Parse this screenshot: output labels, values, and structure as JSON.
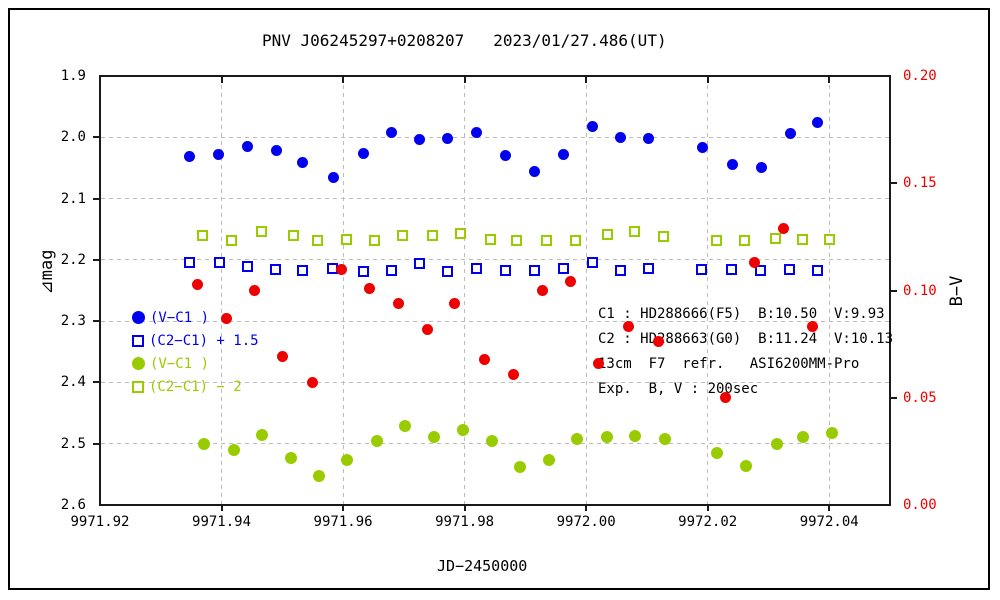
{
  "title": "PNV J06245297+0208207   2023/01/27.486(UT)",
  "colors": {
    "blue": "#0000ee",
    "green": "#99cc00",
    "red": "#ee0000",
    "grid": "#bdbdbd",
    "frame": "#1a1a1a"
  },
  "chart_data": {
    "type": "scatter",
    "title": "PNV J06245297+0208207   2023/01/27.486(UT)",
    "xlabel": "JD−2450000",
    "ylabel_left": "⊿mag",
    "ylabel_right": "B−V",
    "grid": true,
    "xlim": [
      9971.92,
      9972.05
    ],
    "ylim_left": [
      1.9,
      2.6
    ],
    "ylim_right": [
      0.2,
      0.0
    ],
    "x_ticks": [
      9971.92,
      9971.94,
      9971.96,
      9971.98,
      9972.0,
      9972.02,
      9972.04
    ],
    "y_ticks_left": [
      1.9,
      2.0,
      2.1,
      2.2,
      2.3,
      2.4,
      2.5,
      2.6
    ],
    "y_ticks_right": [
      0.2,
      0.15,
      0.1,
      0.05,
      0.0
    ],
    "legend": [
      {
        "label": "(V−C1 )",
        "marker": "circle",
        "color": "#0000ee"
      },
      {
        "label": "(C2−C1) + 1.5",
        "marker": "square",
        "color": "#0000ee"
      },
      {
        "label": "(V−C1 )",
        "marker": "circle",
        "color": "#99cc00"
      },
      {
        "label": "(C2−C1) − 2",
        "marker": "square",
        "color": "#99cc00"
      }
    ],
    "annotation_lines": [
      "C1 : HD288666(F5)  B:10.50  V:9.93",
      "C2 : HD288663(G0)  B:11.24  V:10.13",
      "13cm  F7  refr.   ASI6200MM-Pro",
      "Exp.  B, V : 200sec"
    ],
    "series": [
      {
        "id": "v-c1-blue",
        "name": "(V−C1 )",
        "marker": "circle",
        "filled": true,
        "color": "#0000ee",
        "axis": "left",
        "size": 11,
        "points": [
          [
            9971.9347,
            2.031
          ],
          [
            9971.9395,
            2.028
          ],
          [
            9971.9443,
            2.015
          ],
          [
            9971.949,
            2.022
          ],
          [
            9971.9534,
            2.041
          ],
          [
            9971.9584,
            2.066
          ],
          [
            9971.9633,
            2.026
          ],
          [
            9971.9679,
            1.992
          ],
          [
            9971.9725,
            2.004
          ],
          [
            9971.9772,
            2.002
          ],
          [
            9971.982,
            1.993
          ],
          [
            9971.9868,
            2.03
          ],
          [
            9971.9915,
            2.056
          ],
          [
            9971.9962,
            2.028
          ],
          [
            9972.0011,
            1.982
          ],
          [
            9972.0057,
            2.001
          ],
          [
            9972.0103,
            2.002
          ],
          [
            9972.0191,
            2.016
          ],
          [
            9972.024,
            2.044
          ],
          [
            9972.0289,
            2.049
          ],
          [
            9972.0337,
            1.994
          ],
          [
            9972.0381,
            1.976
          ]
        ]
      },
      {
        "id": "c2-c1-blue",
        "name": "(C2−C1) + 1.5",
        "marker": "square",
        "filled": false,
        "color": "#0000ee",
        "axis": "left",
        "size": 11,
        "points": [
          [
            9971.9348,
            2.205
          ],
          [
            9971.9396,
            2.204
          ],
          [
            9971.9443,
            2.211
          ],
          [
            9971.9489,
            2.216
          ],
          [
            9971.9534,
            2.218
          ],
          [
            9971.9582,
            2.214
          ],
          [
            9971.9633,
            2.219
          ],
          [
            9971.9679,
            2.217
          ],
          [
            9971.9725,
            2.206
          ],
          [
            9971.9772,
            2.219
          ],
          [
            9971.982,
            2.214
          ],
          [
            9971.9868,
            2.217
          ],
          [
            9971.9915,
            2.217
          ],
          [
            9971.9962,
            2.214
          ],
          [
            9972.0011,
            2.205
          ],
          [
            9972.0057,
            2.217
          ],
          [
            9972.0103,
            2.214
          ],
          [
            9972.019,
            2.216
          ],
          [
            9972.0239,
            2.216
          ],
          [
            9972.0287,
            2.218
          ],
          [
            9972.0335,
            2.216
          ],
          [
            9972.038,
            2.217
          ]
        ]
      },
      {
        "id": "v-c1-green",
        "name": "(V−C1 )",
        "marker": "circle",
        "filled": true,
        "color": "#99cc00",
        "axis": "left",
        "size": 12,
        "points": [
          [
            9971.9371,
            2.5
          ],
          [
            9971.942,
            2.511
          ],
          [
            9971.9467,
            2.486
          ],
          [
            9971.9515,
            2.524
          ],
          [
            9971.9561,
            2.552
          ],
          [
            9971.9607,
            2.527
          ],
          [
            9971.9656,
            2.495
          ],
          [
            9971.9702,
            2.471
          ],
          [
            9971.9749,
            2.489
          ],
          [
            9971.9797,
            2.478
          ],
          [
            9971.9845,
            2.495
          ],
          [
            9971.9891,
            2.538
          ],
          [
            9971.9939,
            2.527
          ],
          [
            9971.9985,
            2.493
          ],
          [
            9972.0035,
            2.489
          ],
          [
            9972.008,
            2.488
          ],
          [
            9972.0129,
            2.492
          ],
          [
            9972.0216,
            2.515
          ],
          [
            9972.0263,
            2.536
          ],
          [
            9972.0314,
            2.5
          ],
          [
            9972.0357,
            2.489
          ],
          [
            9972.0405,
            2.483
          ]
        ]
      },
      {
        "id": "c2-c1-green",
        "name": "(C2−C1) − 2",
        "marker": "square",
        "filled": false,
        "color": "#99cc00",
        "axis": "left",
        "size": 11,
        "points": [
          [
            9971.9368,
            2.16
          ],
          [
            9971.9417,
            2.168
          ],
          [
            9971.9466,
            2.154
          ],
          [
            9971.9519,
            2.161
          ],
          [
            9971.9558,
            2.169
          ],
          [
            9971.9606,
            2.166
          ],
          [
            9971.9652,
            2.168
          ],
          [
            9971.9697,
            2.16
          ],
          [
            9971.9747,
            2.16
          ],
          [
            9971.9794,
            2.157
          ],
          [
            9971.9842,
            2.166
          ],
          [
            9971.9886,
            2.168
          ],
          [
            9971.9935,
            2.168
          ],
          [
            9971.9983,
            2.169
          ],
          [
            9972.0035,
            2.158
          ],
          [
            9972.008,
            2.154
          ],
          [
            9972.0127,
            2.162
          ],
          [
            9972.0215,
            2.168
          ],
          [
            9972.026,
            2.168
          ],
          [
            9972.0312,
            2.165
          ],
          [
            9972.0356,
            2.167
          ],
          [
            9972.0401,
            2.167
          ]
        ]
      },
      {
        "id": "b-v-red",
        "name": "B−V",
        "marker": "circle",
        "filled": true,
        "color": "#ee0000",
        "axis": "right",
        "size": 11,
        "points": [
          [
            9971.936,
            0.103
          ],
          [
            9971.9408,
            0.087
          ],
          [
            9971.9454,
            0.1
          ],
          [
            9971.9501,
            0.069
          ],
          [
            9971.955,
            0.057
          ],
          [
            9971.9597,
            0.11
          ],
          [
            9971.9644,
            0.101
          ],
          [
            9971.9692,
            0.094
          ],
          [
            9971.9739,
            0.082
          ],
          [
            9971.9784,
            0.094
          ],
          [
            9971.9833,
            0.068
          ],
          [
            9971.988,
            0.061
          ],
          [
            9971.9928,
            0.1
          ],
          [
            9971.9975,
            0.104
          ],
          [
            9972.002,
            0.066
          ],
          [
            9972.0069,
            0.083
          ],
          [
            9972.0119,
            0.076
          ],
          [
            9972.023,
            0.05
          ],
          [
            9972.0277,
            0.113
          ],
          [
            9972.0324,
            0.129
          ],
          [
            9972.0372,
            0.083
          ]
        ]
      }
    ]
  }
}
